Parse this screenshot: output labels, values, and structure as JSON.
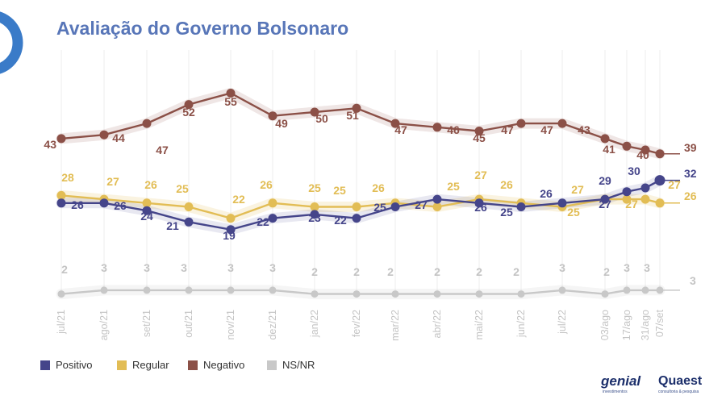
{
  "chart_data": {
    "type": "line",
    "title": "Avaliação do Governo Bolsonaro",
    "categories": [
      "jul/21",
      "ago/21",
      "set/21",
      "out/21",
      "nov/21",
      "dez/21",
      "jan/22",
      "fev/22",
      "mar/22",
      "abr/22",
      "mai/22",
      "jun/22",
      "jul/22",
      "03/ago",
      "17/ago",
      "31/ago",
      "07/set"
    ],
    "ylim": [
      0,
      60
    ],
    "series": [
      {
        "key": "neg",
        "name": "Negativo",
        "color": "#8b5047",
        "values": [
          43,
          44,
          47,
          52,
          55,
          49,
          50,
          51,
          47,
          46,
          45,
          47,
          47,
          43,
          41,
          40,
          39
        ]
      },
      {
        "key": "reg",
        "name": "Regular",
        "color": "#e2bd55",
        "values": [
          28,
          27,
          26,
          25,
          22,
          26,
          25,
          25,
          26,
          25,
          27,
          26,
          25,
          27,
          27,
          27,
          26
        ]
      },
      {
        "key": "pos",
        "name": "Positivo",
        "color": "#45458a",
        "values": [
          26,
          26,
          24,
          21,
          19,
          22,
          23,
          22,
          25,
          27,
          26,
          25,
          26,
          27,
          29,
          30,
          32
        ]
      },
      {
        "key": "ns",
        "name": "NS/NR",
        "color": "#c8c8c8",
        "values": [
          2,
          3,
          3,
          3,
          3,
          3,
          2,
          2,
          2,
          2,
          2,
          2,
          3,
          2,
          3,
          3,
          3
        ]
      }
    ],
    "data_labels": {
      "neg": [
        "43",
        "44",
        "47",
        "52",
        "55",
        "49",
        "50",
        "51",
        "47",
        "46",
        "45",
        "47",
        "47",
        "43",
        "41",
        "40",
        "39"
      ],
      "reg": [
        "28",
        "27",
        "26",
        "25",
        "22",
        "26",
        "25",
        "25",
        "26",
        "25",
        "27",
        "26",
        "25",
        "27",
        "27",
        "27",
        "26"
      ],
      "pos": [
        "26",
        "26",
        "24",
        "21",
        "19",
        "22",
        "23",
        "22",
        "25",
        "27",
        "26",
        "25",
        "26",
        "27",
        "29",
        "30",
        "32"
      ],
      "ns": [
        "2",
        "3",
        "3",
        "3",
        "3",
        "3",
        "2",
        "2",
        "2",
        "2",
        "2",
        "2",
        "3",
        "2",
        "3",
        "3",
        "3"
      ]
    },
    "legend": {
      "position": "bottom-left",
      "order": [
        "pos",
        "reg",
        "neg",
        "ns"
      ]
    }
  },
  "logos": {
    "left": {
      "main": "genial",
      "sub": "investimentos"
    },
    "right": {
      "main": "Quaest",
      "sub": "consultoria & pesquisa"
    }
  },
  "colors": {
    "title": "#5876b8",
    "badge": "#3a7bc8",
    "grid": "#ececec"
  }
}
